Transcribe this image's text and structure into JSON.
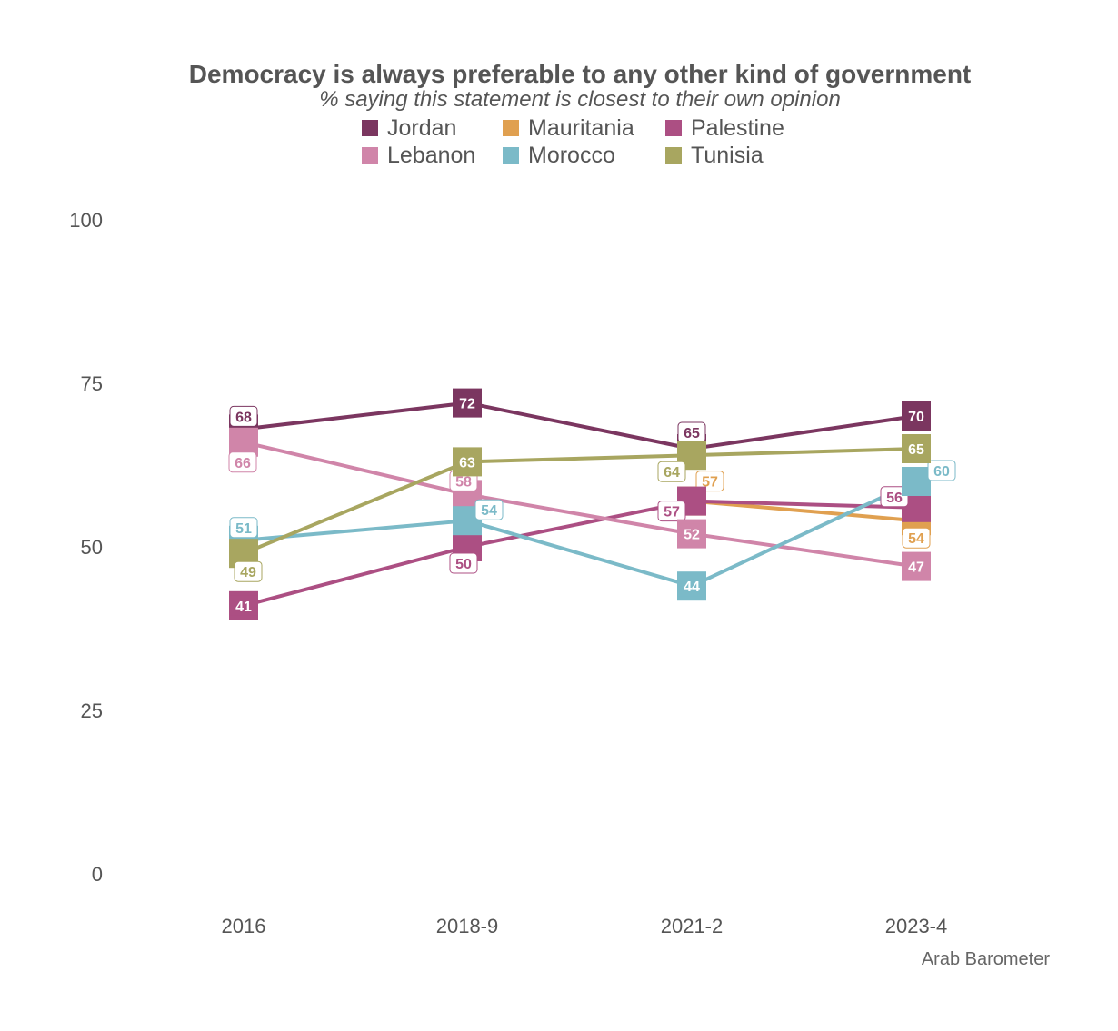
{
  "chart_data": {
    "type": "line",
    "title": "Democracy is always preferable to any other kind of government",
    "subtitle": "% saying this statement is closest to their own opinion",
    "categories": [
      "2016",
      "2018-9",
      "2021-2",
      "2023-4"
    ],
    "ylim": [
      0,
      100
    ],
    "yticks": [
      "0",
      "25",
      "50",
      "75",
      "100"
    ],
    "xlabel": "",
    "ylabel": "",
    "legend_position": "top",
    "series": [
      {
        "name": "Jordan",
        "color": "#7b3660",
        "values": [
          68,
          72,
          65,
          70
        ],
        "labels": [
          "68",
          "72",
          "65",
          "70"
        ]
      },
      {
        "name": "Mauritania",
        "color": "#e0a050",
        "values": [
          null,
          null,
          57,
          54
        ],
        "labels": [
          "",
          "",
          "57",
          "54"
        ]
      },
      {
        "name": "Palestine",
        "color": "#ac4f83",
        "values": [
          41,
          50,
          57,
          56
        ],
        "labels": [
          "41",
          "50",
          "57",
          "56"
        ]
      },
      {
        "name": "Lebanon",
        "color": "#d085a9",
        "values": [
          66,
          58,
          52,
          47
        ],
        "labels": [
          "66",
          "58",
          "52",
          "47"
        ]
      },
      {
        "name": "Morocco",
        "color": "#7bbac8",
        "values": [
          51,
          54,
          44,
          60
        ],
        "labels": [
          "51",
          "54",
          "44",
          "60"
        ]
      },
      {
        "name": "Tunisia",
        "color": "#a8a660",
        "values": [
          49,
          63,
          64,
          65
        ],
        "labels": [
          "49",
          "63",
          "64",
          "65"
        ]
      }
    ],
    "source": "Arab Barometer"
  }
}
